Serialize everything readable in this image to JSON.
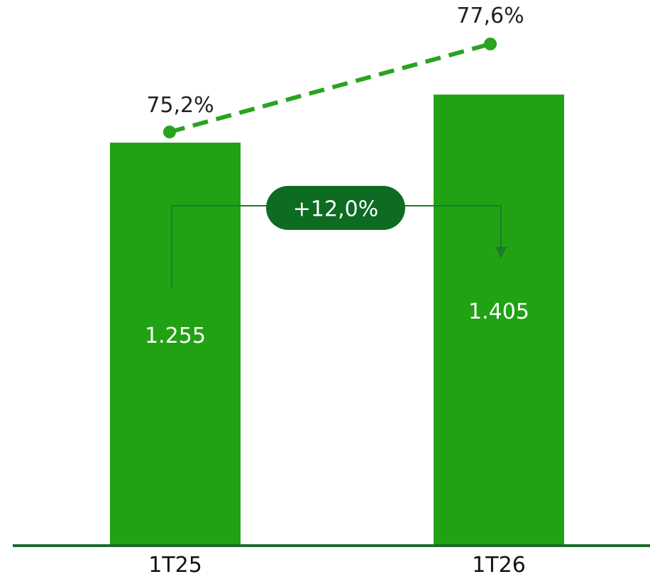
{
  "chart_data": {
    "type": "bar",
    "categories": [
      "1T25",
      "1T26"
    ],
    "values": [
      1255,
      1405
    ],
    "value_labels": [
      "1.255",
      "1.405"
    ],
    "ylim": [
      0,
      1700
    ],
    "grid": false,
    "legend": "none",
    "line_series": {
      "values": [
        75.2,
        77.6
      ],
      "value_labels": [
        "75,2%",
        "77,6%"
      ],
      "style": "dashed",
      "ylim": [
        74.5,
        78.2
      ]
    },
    "growth_annotation": {
      "label": "+12,0%",
      "from": "1T25",
      "to": "1T26"
    }
  },
  "colors": {
    "bar": "#21a214",
    "line": "#2aa321",
    "pill": "#0d6b22",
    "connector": "#1b7a2c",
    "axis": "#1b6b2a"
  }
}
